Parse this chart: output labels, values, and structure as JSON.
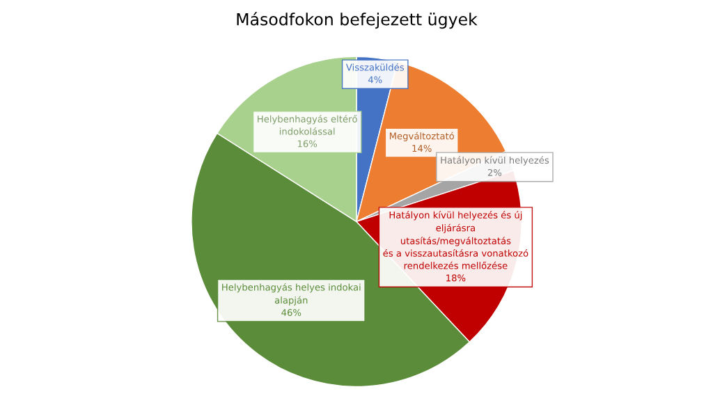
{
  "chart_data": {
    "type": "pie",
    "title": "Másodfokon befejezett ügyek",
    "categories": [
      "Visszaküldés",
      "Megváltoztató",
      "Hatályon kívül helyezés",
      "Hatályon kívül helyezés és új\neljárásra\nutasítás/megváltoztatás\nés a visszautasításra vonatkozó\nrendelkezés mellőzése",
      "Helybenhagyás helyes indokai\nalapján",
      "Helybenhagyás eltérő\nindokolással"
    ],
    "values": [
      4,
      14,
      2,
      18,
      46,
      16
    ],
    "value_labels": [
      "4%",
      "14%",
      "2%",
      "18%",
      "46%",
      "16%"
    ],
    "colors": [
      "#4472c4",
      "#ed7d31",
      "#a5a5a5",
      "#c00000",
      "#5b8c3a",
      "#a9d18e"
    ],
    "legend": false
  }
}
